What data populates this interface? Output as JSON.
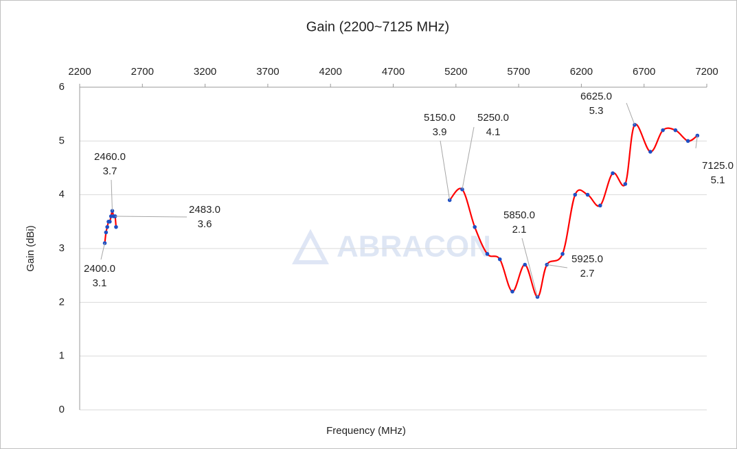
{
  "chart_data": {
    "type": "line",
    "title": "Gain (2200~7125 MHz)",
    "x_label": "Frequency (MHz)",
    "y_label": "Gain (dBi)",
    "watermark": "ABRACON",
    "xlim": [
      2200,
      7200
    ],
    "xticks": [
      2200,
      2700,
      3200,
      3700,
      4200,
      4700,
      5200,
      5700,
      6200,
      6700,
      7200
    ],
    "ylim": [
      0,
      6
    ],
    "yticks": [
      0,
      1,
      2,
      3,
      4,
      5,
      6
    ],
    "grid": true,
    "line_color": "#ff0000",
    "marker_color": "#1f4fc4",
    "series": [
      {
        "x": [
          2400,
          2410,
          2420,
          2430,
          2440,
          2450,
          2460,
          2470,
          2480,
          2483,
          2490
        ],
        "values": [
          3.1,
          3.3,
          3.4,
          3.5,
          3.5,
          3.6,
          3.7,
          3.6,
          3.6,
          3.6,
          3.4
        ]
      },
      {
        "x": [
          5150,
          5250,
          5350,
          5450,
          5550,
          5650,
          5750,
          5850,
          5925,
          6050,
          6150,
          6250,
          6350,
          6450,
          6550,
          6625,
          6750,
          6850,
          6950,
          7050,
          7125
        ],
        "values": [
          3.9,
          4.1,
          3.4,
          2.9,
          2.8,
          2.2,
          2.7,
          2.1,
          2.7,
          2.9,
          4.0,
          4.0,
          3.8,
          4.4,
          4.2,
          5.3,
          4.8,
          5.2,
          5.2,
          5.0,
          5.1
        ]
      }
    ],
    "annotations": [
      [
        "2400.0",
        "3.1"
      ],
      [
        "2460.0",
        "3.7"
      ],
      [
        "2483.0",
        "3.6"
      ],
      [
        "5150.0",
        "3.9"
      ],
      [
        "5250.0",
        "4.1"
      ],
      [
        "5850.0",
        "2.1"
      ],
      [
        "5925.0",
        "2.7"
      ],
      [
        "6625.0",
        "5.3"
      ],
      [
        "7125.0",
        "5.1"
      ]
    ]
  }
}
